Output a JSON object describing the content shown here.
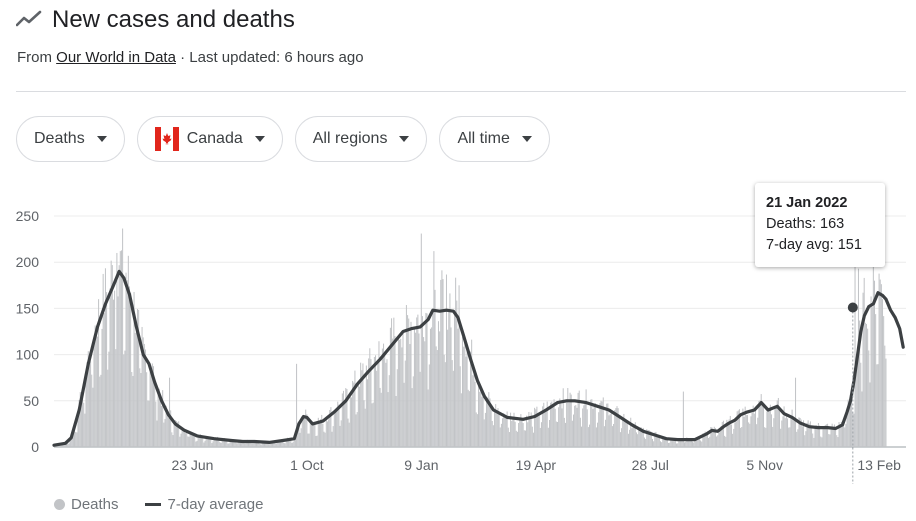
{
  "header": {
    "title": "New cases and deaths",
    "source_prefix": "From",
    "source_name": "Our World in Data",
    "updated": "· Last updated: 6 hours ago"
  },
  "filters": [
    {
      "label": "Deaths"
    },
    {
      "label": "Canada",
      "icon": "canada-flag-icon"
    },
    {
      "label": "All regions"
    },
    {
      "label": "All time"
    }
  ],
  "tooltip": {
    "date": "21 Jan 2022",
    "deaths_label": "Deaths: 163",
    "avg_label": "7-day avg: 151",
    "deaths": 163,
    "avg": 151
  },
  "legend": {
    "deaths": "Deaths",
    "avg": "7-day average"
  },
  "colors": {
    "bars": "#c2c4c7",
    "line": "#3c4043",
    "grid": "#ececec",
    "text": "#5f6368"
  },
  "chart_data": {
    "type": "bar",
    "title": "New cases and deaths",
    "xlabel": "",
    "ylabel": "",
    "ylim": [
      0,
      250
    ],
    "yticks": [
      0,
      50,
      100,
      150,
      200,
      250
    ],
    "x_tick_labels": [
      "23 Jun",
      "1 Oct",
      "9 Jan",
      "19 Apr",
      "28 Jul",
      "5 Nov",
      "13 Feb"
    ],
    "x_tick_days": [
      121,
      221,
      321,
      421,
      521,
      621,
      721
    ],
    "x_range_days": [
      0,
      727
    ],
    "highlight_day": 698,
    "series": [
      {
        "name": "Deaths",
        "kind": "bar"
      },
      {
        "name": "7-day average",
        "kind": "line",
        "points": [
          [
            0,
            2
          ],
          [
            10,
            4
          ],
          [
            15,
            10
          ],
          [
            22,
            40
          ],
          [
            30,
            90
          ],
          [
            38,
            130
          ],
          [
            45,
            155
          ],
          [
            52,
            175
          ],
          [
            57,
            190
          ],
          [
            61,
            183
          ],
          [
            66,
            165
          ],
          [
            72,
            130
          ],
          [
            78,
            100
          ],
          [
            83,
            90
          ],
          [
            88,
            70
          ],
          [
            94,
            50
          ],
          [
            100,
            35
          ],
          [
            106,
            25
          ],
          [
            114,
            18
          ],
          [
            125,
            12
          ],
          [
            140,
            9
          ],
          [
            155,
            7
          ],
          [
            165,
            6
          ],
          [
            175,
            6
          ],
          [
            188,
            5
          ],
          [
            200,
            7
          ],
          [
            210,
            9
          ],
          [
            214,
            25
          ],
          [
            218,
            33
          ],
          [
            221,
            32
          ],
          [
            226,
            25
          ],
          [
            235,
            28
          ],
          [
            245,
            38
          ],
          [
            255,
            50
          ],
          [
            265,
            68
          ],
          [
            275,
            82
          ],
          [
            285,
            95
          ],
          [
            295,
            110
          ],
          [
            305,
            125
          ],
          [
            312,
            128
          ],
          [
            320,
            130
          ],
          [
            327,
            138
          ],
          [
            331,
            148
          ],
          [
            337,
            147
          ],
          [
            343,
            148
          ],
          [
            349,
            147
          ],
          [
            353,
            140
          ],
          [
            358,
            120
          ],
          [
            364,
            95
          ],
          [
            370,
            72
          ],
          [
            376,
            55
          ],
          [
            384,
            40
          ],
          [
            396,
            32
          ],
          [
            410,
            30
          ],
          [
            420,
            33
          ],
          [
            430,
            40
          ],
          [
            440,
            48
          ],
          [
            448,
            50
          ],
          [
            455,
            50
          ],
          [
            465,
            48
          ],
          [
            475,
            44
          ],
          [
            485,
            40
          ],
          [
            495,
            32
          ],
          [
            505,
            24
          ],
          [
            515,
            17
          ],
          [
            525,
            13
          ],
          [
            535,
            9
          ],
          [
            545,
            8
          ],
          [
            555,
            8
          ],
          [
            560,
            8
          ],
          [
            565,
            11
          ],
          [
            570,
            14
          ],
          [
            575,
            18
          ],
          [
            580,
            17
          ],
          [
            585,
            22
          ],
          [
            590,
            26
          ],
          [
            595,
            29
          ],
          [
            600,
            35
          ],
          [
            606,
            38
          ],
          [
            612,
            40
          ],
          [
            618,
            48
          ],
          [
            624,
            40
          ],
          [
            632,
            44
          ],
          [
            638,
            36
          ],
          [
            645,
            32
          ],
          [
            652,
            26
          ],
          [
            660,
            22
          ],
          [
            668,
            21
          ],
          [
            676,
            21
          ],
          [
            683,
            20
          ],
          [
            689,
            24
          ],
          [
            693,
            38
          ],
          [
            696,
            50
          ],
          [
            699,
            72
          ],
          [
            702,
            98
          ],
          [
            705,
            125
          ],
          [
            708,
            142
          ],
          [
            712,
            152
          ],
          [
            716,
            155
          ],
          [
            720,
            167
          ],
          [
            724,
            164
          ],
          [
            727,
            160
          ],
          [
            731,
            148
          ],
          [
            735,
            140
          ],
          [
            739,
            128
          ],
          [
            742,
            108
          ]
        ]
      }
    ]
  }
}
